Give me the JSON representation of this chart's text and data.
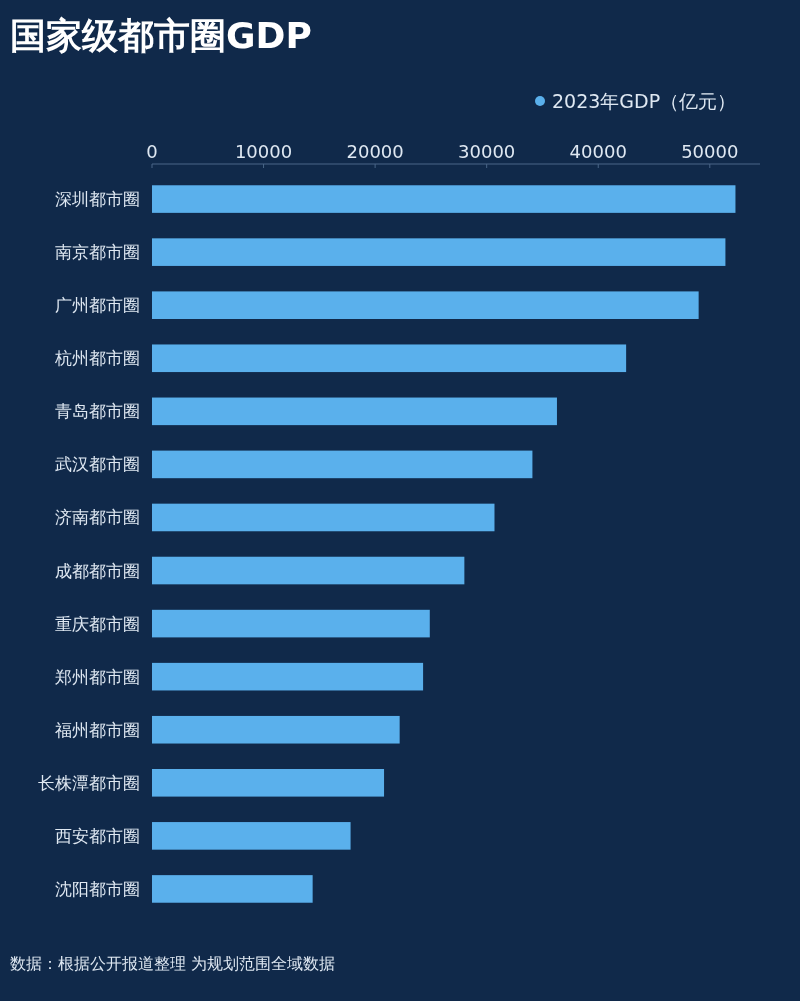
{
  "chart_data": {
    "type": "bar",
    "orientation": "horizontal",
    "title": "国家级都市圈GDP",
    "categories": [
      "深圳都市圈",
      "南京都市圈",
      "广州都市圈",
      "杭州都市圈",
      "青岛都市圈",
      "武汉都市圈",
      "济南都市圈",
      "成都都市圈",
      "重庆都市圈",
      "郑州都市圈",
      "福州都市圈",
      "长株潭都市圈",
      "西安都市圈",
      "沈阳都市圈"
    ],
    "series": [
      {
        "name": "2023年GDP（亿元）",
        "color": "#5ab0ec",
        "values": [
          52300,
          51400,
          49000,
          42500,
          36300,
          34100,
          30700,
          28000,
          24900,
          24300,
          22200,
          20800,
          17800,
          14400
        ]
      }
    ],
    "xlim": [
      0,
      54500
    ],
    "xticks": [
      0,
      10000,
      20000,
      30000,
      40000,
      50000
    ],
    "grid": false,
    "legend": "top right",
    "annotations": [
      "数据：根据公开报道整理 为规划范围全域数据"
    ]
  }
}
